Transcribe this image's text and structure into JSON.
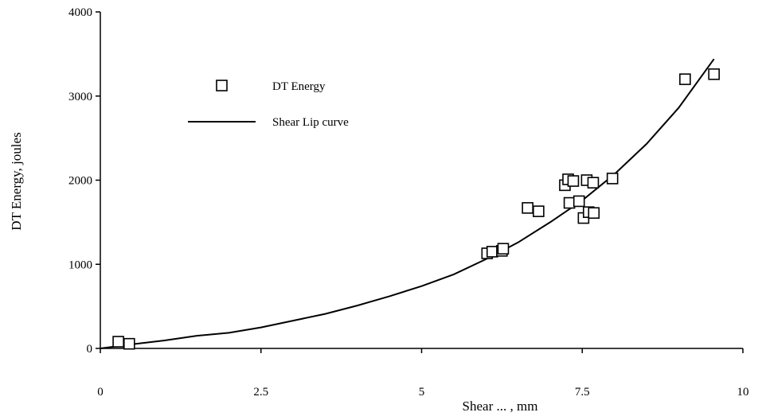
{
  "chart_data": {
    "type": "scatter",
    "xlabel": "Shear ... , mm",
    "ylabel": "DT Energy, joules",
    "xlim": [
      0,
      10
    ],
    "ylim": [
      0,
      4000
    ],
    "x_ticks": [
      "0",
      "2.5",
      "5",
      "7.5",
      "10"
    ],
    "y_ticks": [
      "0",
      "1000",
      "2000",
      "3000",
      "4000"
    ],
    "grid": false,
    "legend_position": "top-left",
    "series": [
      {
        "name": "DT Energy",
        "kind": "markers",
        "marker": "square",
        "points": [
          [
            0.28,
            80
          ],
          [
            0.45,
            55
          ],
          [
            6.02,
            1130
          ],
          [
            6.1,
            1150
          ],
          [
            6.25,
            1160
          ],
          [
            6.27,
            1185
          ],
          [
            6.65,
            1670
          ],
          [
            6.82,
            1630
          ],
          [
            7.23,
            1940
          ],
          [
            7.28,
            2010
          ],
          [
            7.3,
            1730
          ],
          [
            7.36,
            1990
          ],
          [
            7.45,
            1750
          ],
          [
            7.52,
            1550
          ],
          [
            7.57,
            2000
          ],
          [
            7.6,
            1620
          ],
          [
            7.67,
            1970
          ],
          [
            7.68,
            1610
          ],
          [
            7.97,
            2020
          ],
          [
            9.1,
            3200
          ],
          [
            9.55,
            3260
          ]
        ]
      },
      {
        "name": "Shear Lip curve",
        "kind": "line",
        "points": [
          [
            0,
            0
          ],
          [
            0.5,
            50
          ],
          [
            1,
            95
          ],
          [
            1.5,
            150
          ],
          [
            2,
            185
          ],
          [
            2.5,
            250
          ],
          [
            3,
            330
          ],
          [
            3.5,
            410
          ],
          [
            4,
            510
          ],
          [
            4.5,
            620
          ],
          [
            5,
            740
          ],
          [
            5.5,
            880
          ],
          [
            6,
            1060
          ],
          [
            6.5,
            1260
          ],
          [
            7,
            1500
          ],
          [
            7.5,
            1760
          ],
          [
            8,
            2070
          ],
          [
            8.5,
            2430
          ],
          [
            9,
            2860
          ],
          [
            9.55,
            3440
          ]
        ]
      }
    ]
  }
}
